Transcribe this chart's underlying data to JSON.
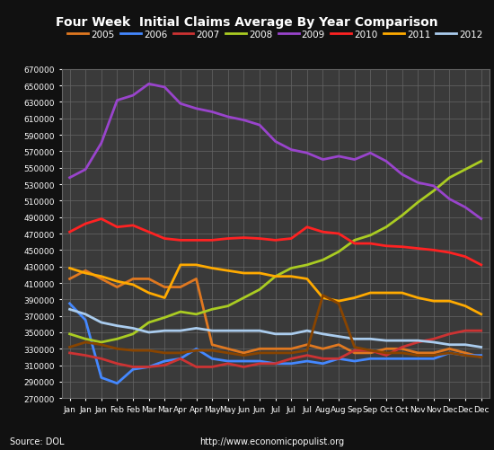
{
  "title": "Four Week  Initial Claims Average By Year Comparison",
  "background_color": "#111111",
  "plot_bg_color": "#3a3a3a",
  "grid_color": "#666666",
  "text_color": "#ffffff",
  "source_text": "Source: DOL",
  "url_text": "http://www.economicpopulist.org",
  "ylim": [
    270000,
    670000
  ],
  "ytick_step": 20000,
  "x_labels": [
    "Jan",
    "Jan",
    "Jan",
    "Feb",
    "Feb",
    "Mar",
    "Mar",
    "Apr",
    "Apr",
    "May",
    "May",
    "Jun",
    "Jun",
    "Jul",
    "Jul",
    "Jul",
    "Aug",
    "Aug",
    "Sep",
    "Sep",
    "Oct",
    "Oct",
    "Nov",
    "Nov",
    "Dec",
    "Dec",
    "Dec"
  ],
  "series": {
    "2005": {
      "color": "#e07820",
      "data": [
        415000,
        425000,
        415000,
        405000,
        415000,
        415000,
        405000,
        405000,
        415000,
        335000,
        330000,
        325000,
        330000,
        330000,
        330000,
        335000,
        330000,
        335000,
        325000,
        325000,
        330000,
        330000,
        325000,
        325000,
        330000,
        325000,
        320000
      ]
    },
    "2006": {
      "color": "#4488ff",
      "data": [
        385000,
        365000,
        295000,
        288000,
        305000,
        308000,
        315000,
        318000,
        330000,
        318000,
        315000,
        315000,
        315000,
        312000,
        312000,
        315000,
        312000,
        318000,
        315000,
        318000,
        318000,
        318000,
        318000,
        318000,
        325000,
        322000,
        322000
      ]
    },
    "2007": {
      "color": "#cc3333",
      "data": [
        325000,
        322000,
        318000,
        312000,
        308000,
        308000,
        310000,
        318000,
        308000,
        308000,
        312000,
        308000,
        312000,
        312000,
        318000,
        322000,
        318000,
        318000,
        328000,
        328000,
        322000,
        332000,
        338000,
        342000,
        348000,
        352000,
        352000
      ]
    },
    "2008": {
      "color": "#aacc22",
      "data": [
        348000,
        342000,
        338000,
        342000,
        348000,
        362000,
        368000,
        375000,
        372000,
        378000,
        382000,
        392000,
        402000,
        418000,
        428000,
        432000,
        438000,
        448000,
        462000,
        468000,
        478000,
        492000,
        508000,
        522000,
        538000,
        548000,
        558000
      ]
    },
    "2009": {
      "color": "#9944cc",
      "data": [
        538000,
        548000,
        580000,
        632000,
        638000,
        652000,
        648000,
        628000,
        622000,
        618000,
        612000,
        608000,
        602000,
        582000,
        572000,
        568000,
        560000,
        564000,
        560000,
        568000,
        558000,
        542000,
        532000,
        528000,
        512000,
        502000,
        488000
      ]
    },
    "2010": {
      "color": "#ff2222",
      "data": [
        472000,
        482000,
        488000,
        478000,
        480000,
        472000,
        464000,
        462000,
        462000,
        462000,
        464000,
        465000,
        464000,
        462000,
        464000,
        478000,
        472000,
        470000,
        458000,
        458000,
        455000,
        454000,
        452000,
        450000,
        447000,
        442000,
        432000
      ]
    },
    "2011": {
      "color": "#ffaa00",
      "data": [
        428000,
        422000,
        418000,
        412000,
        408000,
        398000,
        392000,
        432000,
        432000,
        428000,
        425000,
        422000,
        422000,
        418000,
        418000,
        415000,
        392000,
        388000,
        392000,
        398000,
        398000,
        398000,
        392000,
        388000,
        388000,
        382000,
        372000
      ]
    },
    "2012": {
      "color": "#aaccee",
      "data": [
        378000,
        372000,
        362000,
        358000,
        355000,
        350000,
        352000,
        352000,
        355000,
        352000,
        352000,
        352000,
        352000,
        348000,
        348000,
        352000,
        348000,
        345000,
        342000,
        342000,
        340000,
        340000,
        340000,
        338000,
        335000,
        335000,
        332000
      ]
    }
  },
  "extra_series": {
    "2005_brown": {
      "color": "#884400",
      "data": [
        332000,
        338000,
        335000,
        330000,
        328000,
        328000,
        325000,
        325000,
        328000,
        328000,
        325000,
        322000,
        325000,
        325000,
        325000,
        328000,
        395000,
        385000,
        332000,
        328000,
        325000,
        325000,
        322000,
        322000,
        325000,
        322000,
        320000
      ]
    }
  }
}
